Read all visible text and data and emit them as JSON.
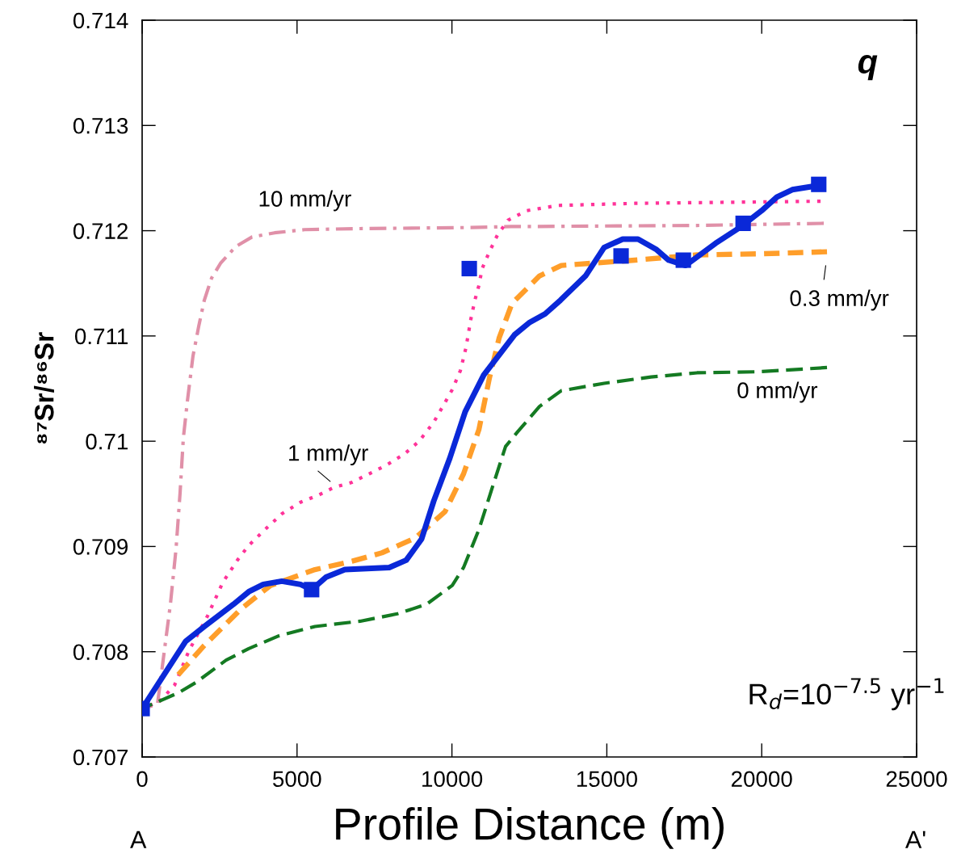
{
  "chart_data": {
    "type": "line",
    "xlabel": "Profile Distance (m)",
    "ylabel": "⁸⁷Sr/⁸⁶Sr",
    "xlim": [
      0,
      25000
    ],
    "xticks": [
      0,
      5000,
      10000,
      15000,
      20000,
      25000
    ],
    "ylim": [
      0.707,
      0.714
    ],
    "yticks": [
      0.707,
      0.708,
      0.709,
      0.71,
      0.711,
      0.712,
      0.713,
      0.714
    ],
    "grid": false,
    "legend": false,
    "annotations": [
      "q",
      "R$_{d}$=10$^{−7.5}$ yr$^{−1}$",
      "A",
      "A'"
    ],
    "series": [
      {
        "name": "10 mm/yr",
        "color": "#e090a8",
        "line_style": "dashdot",
        "x": [
          0,
          495,
          678,
          912,
          1095,
          1225,
          1330,
          1460,
          1642,
          1825,
          2007,
          2242,
          2529,
          3024,
          3546,
          4275,
          5240,
          7039,
          10611,
          11914,
          12514,
          17910,
          22003
        ],
        "values": [
          0.70746,
          0.7075,
          0.70792,
          0.70845,
          0.70898,
          0.70951,
          0.71003,
          0.71038,
          0.71081,
          0.71109,
          0.71134,
          0.71155,
          0.71169,
          0.71185,
          0.71194,
          0.71198,
          0.71201,
          0.71202,
          0.71203,
          0.71204,
          0.71204,
          0.71205,
          0.71207
        ]
      },
      {
        "name": "1 mm/yr",
        "color": "#ff3399",
        "line_style": "dotted",
        "x": [
          0,
          574,
          1043,
          1512,
          2112,
          2607,
          3076,
          3441,
          3963,
          4510,
          5110,
          5709,
          6179,
          6778,
          7326,
          7873,
          8473,
          8942,
          9411,
          9724,
          10011,
          10272,
          10454,
          10611,
          10741,
          10871,
          10975,
          11210,
          11471,
          11810,
          12409,
          13426,
          15903,
          18901,
          21899
        ],
        "values": [
          0.70746,
          0.70753,
          0.70768,
          0.70801,
          0.70834,
          0.70866,
          0.70887,
          0.70901,
          0.70916,
          0.70931,
          0.70942,
          0.70949,
          0.70956,
          0.70961,
          0.70969,
          0.70977,
          0.70988,
          0.71,
          0.71018,
          0.71034,
          0.71049,
          0.71067,
          0.71089,
          0.71116,
          0.71134,
          0.71148,
          0.71164,
          0.7118,
          0.71196,
          0.7121,
          0.71219,
          0.71224,
          0.71226,
          0.71227,
          0.71228
        ]
      },
      {
        "name": "0.3 mm/yr",
        "color": "#ff9e2a",
        "line_style": "dashed",
        "x": [
          1043,
          2007,
          3207,
          4145,
          5579,
          6778,
          7743,
          8812,
          9776,
          10376,
          10871,
          11210,
          11523,
          11940,
          12826,
          13530,
          15903,
          17910,
          19917,
          22107
        ],
        "values": [
          0.70774,
          0.70806,
          0.70841,
          0.70863,
          0.70878,
          0.70886,
          0.70894,
          0.70908,
          0.70933,
          0.70969,
          0.71011,
          0.7106,
          0.71098,
          0.71131,
          0.71157,
          0.71167,
          0.71172,
          0.71177,
          0.71178,
          0.7118
        ]
      },
      {
        "name": "0 mm/yr",
        "color": "#147a22",
        "line_style": "dashed",
        "x": [
          0,
          1173,
          1747,
          2711,
          3441,
          4406,
          5579,
          7039,
          8238,
          9177,
          10011,
          10376,
          10871,
          11314,
          11732,
          12123,
          12826,
          13530,
          14912,
          16424,
          17910,
          19917,
          22107
        ],
        "values": [
          0.70746,
          0.70761,
          0.70771,
          0.70792,
          0.70803,
          0.70815,
          0.70824,
          0.70829,
          0.70836,
          0.70845,
          0.70863,
          0.7088,
          0.70916,
          0.70957,
          0.70995,
          0.71009,
          0.71033,
          0.71048,
          0.71055,
          0.71061,
          0.71065,
          0.71066,
          0.7107
        ]
      },
      {
        "color": "#0a28d8",
        "line_style": "solid",
        "x": [
          0,
          1408,
          2007,
          2946,
          3441,
          3911,
          4510,
          5110,
          5475,
          5944,
          6544,
          7977,
          8525,
          9020,
          9411,
          9933,
          10428,
          11028,
          12018,
          12514,
          13009,
          13504,
          14312,
          14912,
          15512,
          16007,
          16607,
          16998,
          17545,
          18510,
          19292,
          19996,
          20491,
          20986,
          21847
        ],
        "values": [
          0.70746,
          0.7081,
          0.70824,
          0.70845,
          0.70857,
          0.70864,
          0.70867,
          0.70864,
          0.70859,
          0.70871,
          0.70878,
          0.7088,
          0.70887,
          0.70907,
          0.70943,
          0.70984,
          0.71028,
          0.71063,
          0.71101,
          0.71113,
          0.71121,
          0.71134,
          0.71157,
          0.71184,
          0.71192,
          0.71192,
          0.71182,
          0.71172,
          0.71167,
          0.71188,
          0.71203,
          0.71219,
          0.71232,
          0.71239,
          0.71243
        ]
      },
      {
        "type": "scatter",
        "marker": "square",
        "color": "#0a28d8",
        "x": [
          0,
          5470,
          10560,
          15460,
          17470,
          19400,
          21840
        ],
        "values": [
          0.70746,
          0.70859,
          0.71164,
          0.71176,
          0.71172,
          0.71207,
          0.71244
        ]
      }
    ]
  }
}
